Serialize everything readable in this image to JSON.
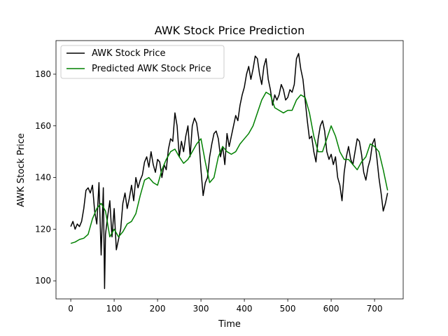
{
  "chart_data": {
    "type": "line",
    "title": "AWK Stock Price Prediction",
    "xlabel": "Time",
    "ylabel": "AWK Stock Price",
    "xlim": [
      -34,
      766
    ],
    "ylim": [
      93,
      193
    ],
    "xticks": [
      0,
      100,
      200,
      300,
      400,
      500,
      600,
      700
    ],
    "yticks": [
      100,
      120,
      140,
      160,
      180
    ],
    "grid": false,
    "legend_placement": "upper-left",
    "series": [
      {
        "name": "AWK Stock Price",
        "color": "#000000",
        "x": [
          0,
          5,
          10,
          15,
          20,
          25,
          30,
          35,
          40,
          45,
          50,
          55,
          60,
          65,
          70,
          75,
          78,
          80,
          85,
          90,
          95,
          100,
          105,
          110,
          115,
          120,
          125,
          130,
          135,
          140,
          145,
          150,
          155,
          160,
          165,
          170,
          175,
          180,
          185,
          190,
          195,
          200,
          205,
          210,
          215,
          220,
          225,
          230,
          235,
          240,
          245,
          250,
          255,
          260,
          265,
          270,
          275,
          280,
          285,
          290,
          295,
          300,
          305,
          310,
          315,
          320,
          325,
          330,
          335,
          340,
          345,
          350,
          355,
          360,
          365,
          370,
          375,
          380,
          385,
          390,
          395,
          400,
          405,
          410,
          415,
          420,
          425,
          430,
          435,
          440,
          445,
          450,
          455,
          460,
          465,
          470,
          475,
          480,
          485,
          490,
          495,
          500,
          505,
          510,
          515,
          520,
          525,
          530,
          535,
          540,
          545,
          550,
          555,
          560,
          565,
          570,
          575,
          580,
          585,
          590,
          595,
          600,
          605,
          610,
          615,
          620,
          625,
          630,
          635,
          640,
          645,
          650,
          655,
          660,
          665,
          670,
          675,
          680,
          685,
          690,
          695,
          700,
          705,
          710,
          715,
          720,
          725,
          730
        ],
        "values": [
          121,
          123,
          120,
          122,
          121,
          123,
          128,
          135,
          136,
          134,
          137,
          127,
          122,
          138,
          110,
          136,
          97,
          118,
          125,
          131,
          117,
          128,
          112,
          116,
          120,
          130,
          134,
          128,
          132,
          137,
          131,
          140,
          136,
          139,
          141,
          146,
          148,
          144,
          150,
          145,
          142,
          147,
          146,
          140,
          145,
          143,
          151,
          155,
          154,
          165,
          160,
          148,
          154,
          150,
          156,
          160,
          148,
          160,
          163,
          161,
          155,
          143,
          133,
          138,
          140,
          148,
          153,
          157,
          158,
          155,
          148,
          152,
          145,
          157,
          152,
          156,
          160,
          164,
          162,
          168,
          172,
          175,
          180,
          183,
          178,
          182,
          187,
          186,
          180,
          176,
          183,
          186,
          178,
          174,
          168,
          172,
          170,
          172,
          176,
          174,
          170,
          171,
          174,
          173,
          176,
          186,
          188,
          182,
          178,
          170,
          162,
          155,
          156,
          150,
          146,
          155,
          160,
          162,
          158,
          150,
          147,
          149,
          145,
          148,
          140,
          137,
          131,
          142,
          148,
          152,
          147,
          145,
          150,
          155,
          154,
          149,
          142,
          139,
          144,
          147,
          153,
          155,
          148,
          140,
          134,
          127,
          130,
          134
        ]
      },
      {
        "name": "Predicted AWK Stock Price",
        "color": "#008000",
        "x": [
          0,
          10,
          20,
          30,
          40,
          50,
          60,
          70,
          80,
          90,
          100,
          110,
          120,
          130,
          140,
          150,
          160,
          170,
          180,
          190,
          200,
          210,
          220,
          230,
          240,
          250,
          260,
          270,
          280,
          290,
          300,
          310,
          320,
          330,
          340,
          350,
          360,
          370,
          380,
          390,
          400,
          410,
          420,
          430,
          440,
          450,
          460,
          470,
          480,
          490,
          500,
          510,
          520,
          530,
          540,
          550,
          560,
          570,
          580,
          590,
          600,
          610,
          620,
          630,
          640,
          650,
          660,
          670,
          680,
          690,
          700,
          710,
          720,
          730
        ],
        "values": [
          114.5,
          115.0,
          116.0,
          116.5,
          118.0,
          124.0,
          128.0,
          130.0,
          127.0,
          117.0,
          120.0,
          117.0,
          119.0,
          122.0,
          123.0,
          126.0,
          133.0,
          139.0,
          140.0,
          138.0,
          137.0,
          143.0,
          147.0,
          150.0,
          151.0,
          148.0,
          145.5,
          147.0,
          150.0,
          153.0,
          155.0,
          146.0,
          138.0,
          140.0,
          148.0,
          152.0,
          150.0,
          149.0,
          150.0,
          153.0,
          155.0,
          157.0,
          160.0,
          165.0,
          170.0,
          173.0,
          172.0,
          167.0,
          166.0,
          165.0,
          166.0,
          166.0,
          170.0,
          172.0,
          171.0,
          165.0,
          156.0,
          150.0,
          150.0,
          155.0,
          160.0,
          156.0,
          150.0,
          147.0,
          147.0,
          145.0,
          143.0,
          146.0,
          148.0,
          153.0,
          152.0,
          150.0,
          143.0,
          135.0
        ]
      }
    ]
  }
}
